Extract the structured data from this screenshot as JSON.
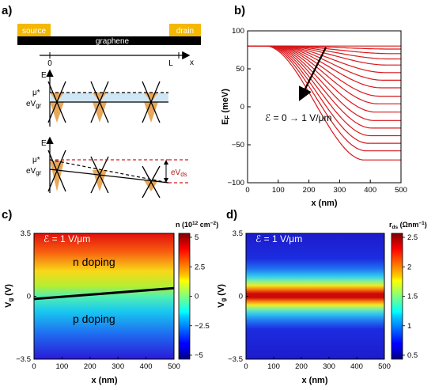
{
  "panels": {
    "a": {
      "label": "a)",
      "source": "source",
      "drain": "drain",
      "graphene": "graphene",
      "x_zero": "0",
      "x_L": "L",
      "x_axis": "x",
      "energy_axis": "E",
      "mu": "μ*",
      "eVgr": "eV",
      "eVgr_sub": "gr",
      "eVds": "eV",
      "eVds_sub": "ds"
    },
    "b": {
      "label": "b)",
      "annotation": "ℰ = 0 → 1 V/μm",
      "line_color": "#d7191c"
    },
    "c": {
      "label": "c)",
      "field_label": "ℰ = 1 V/μm",
      "region_n": "n doping",
      "region_p": "p doping",
      "colorbar_title": "n (10",
      "colorbar_title_sup": "12",
      "colorbar_title_unit": " cm",
      "colorbar_title_sup2": "−2",
      "colorbar_title_end": ")",
      "colorbar_ticks": [
        "5",
        "2.5",
        "0",
        "−2.5",
        "−5"
      ]
    },
    "d": {
      "label": "d)",
      "field_label": "ℰ = 1 V/μm",
      "colorbar_title": "r",
      "colorbar_title_sub": "ds",
      "colorbar_title_unit": " (Ωnm",
      "colorbar_title_sup": "−1",
      "colorbar_title_end": ")",
      "colorbar_ticks": [
        "2.5",
        "2",
        "1.5",
        "1",
        "0.5"
      ]
    }
  },
  "chart_data": [
    {
      "type": "line",
      "panel": "b",
      "xlabel": "x (nm)",
      "ylabel": "E",
      "ylabel_sub": "F",
      "ylabel_unit": " (meV)",
      "xlim": [
        0,
        500
      ],
      "ylim": [
        -100,
        100
      ],
      "x_ticks": [
        0,
        100,
        200,
        300,
        400,
        500
      ],
      "y_ticks": [
        100,
        50,
        0,
        -50,
        -100
      ],
      "E0": 80,
      "x_transition_start": 60,
      "x_transition_end": 380,
      "series_end_values": [
        80,
        76,
        70,
        63,
        55,
        45,
        35,
        25,
        14,
        4,
        -7,
        -18,
        -28,
        -38,
        -48,
        -58,
        -70
      ]
    },
    {
      "type": "heatmap",
      "panel": "c",
      "xlabel": "x (nm)",
      "ylabel": "V",
      "ylabel_sub": "g",
      "ylabel_unit": " (V)",
      "xlim": [
        0,
        500
      ],
      "ylim": [
        -3.5,
        3.5
      ],
      "x_ticks": [
        0,
        100,
        200,
        300,
        400,
        500
      ],
      "y_ticks": [
        "3.5",
        "0",
        "−3.5"
      ],
      "colorbar_range": [
        -5,
        5
      ],
      "neutrality_line": {
        "x": [
          0,
          500
        ],
        "vg": [
          -0.15,
          0.45
        ]
      }
    },
    {
      "type": "heatmap",
      "panel": "d",
      "xlabel": "x (nm)",
      "ylabel": "V",
      "ylabel_sub": "g",
      "ylabel_unit": " (V)",
      "xlim": [
        0,
        500
      ],
      "ylim": [
        -3.5,
        3.5
      ],
      "x_ticks": [
        0,
        100,
        200,
        300,
        400,
        500
      ],
      "y_ticks": [
        "3.5",
        "0",
        "−3.5"
      ],
      "colorbar_range": [
        0.5,
        2.5
      ],
      "peak_line": {
        "x": [
          0,
          500
        ],
        "vg": [
          -0.3,
          0.35
        ]
      }
    }
  ]
}
